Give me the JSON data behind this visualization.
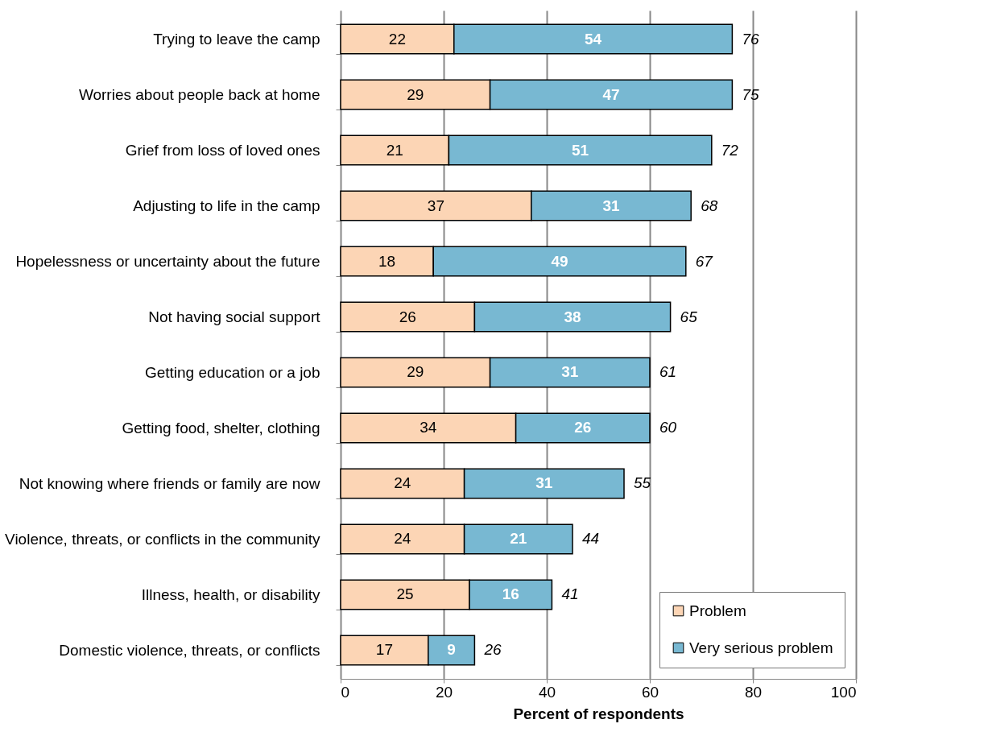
{
  "chart_data": {
    "type": "bar",
    "orientation": "horizontal",
    "stacked": true,
    "categories": [
      "Trying to leave the camp",
      "Worries about people back at home",
      "Grief from loss of loved ones",
      "Adjusting to life in the camp",
      "Hopelessness or uncertainty about the future",
      "Not having social support",
      "Getting education or a job",
      "Getting food, shelter, clothing",
      "Not knowing where friends or family are now",
      "Violence, threats, or conflicts in the community",
      "Illness, health, or disability",
      "Domestic violence, threats, or conflicts"
    ],
    "series": [
      {
        "name": "Problem",
        "color": "#fcd5b5",
        "values": [
          22,
          29,
          21,
          37,
          18,
          26,
          29,
          34,
          24,
          24,
          25,
          17
        ]
      },
      {
        "name": "Very serious problem",
        "color": "#78b8d2",
        "values": [
          54,
          47,
          51,
          31,
          49,
          38,
          31,
          26,
          31,
          21,
          16,
          9
        ]
      }
    ],
    "totals": [
      "76",
      "75",
      "72",
      "68",
      "67",
      "65",
      "61",
      "60",
      "55",
      "44",
      "41",
      "26"
    ],
    "data_labels": true,
    "xlabel": "Percent of respondents",
    "xlim": [
      0,
      100
    ],
    "xticks": [
      0,
      20,
      40,
      60,
      80,
      100
    ],
    "grid": "x",
    "legend": "bottom right"
  }
}
